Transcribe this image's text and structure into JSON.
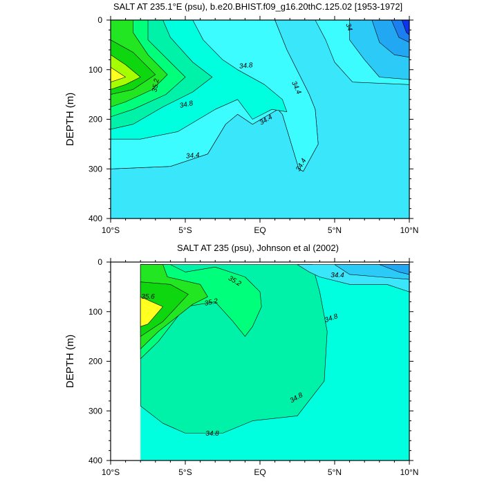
{
  "colors": {
    "levels": [
      "#0b33f0",
      "#1c7ff0",
      "#22a8f3",
      "#2ccaf6",
      "#39e6fa",
      "#3cfcff",
      "#00ffdf",
      "#00f2a8",
      "#00ff7a",
      "#22e622",
      "#0fd70f",
      "#a5ff00",
      "#ffff20"
    ],
    "contour": "#000000",
    "axis": "#000000"
  },
  "chart_data": [
    {
      "type": "contour",
      "title": "SALT AT 235.1°E (psu), b.e20.BHIST.f09_g16.20thC.125.02 [1953-1972]",
      "xlabel": "",
      "ylabel": "DEPTH (m)",
      "xlim": [
        -10,
        10
      ],
      "ylim": [
        400,
        0
      ],
      "x_ticks": [
        "10°S",
        "5°S",
        "EQ",
        "5°N",
        "10°N"
      ],
      "y_ticks": [
        "0",
        "100",
        "200",
        "300",
        "400"
      ],
      "contour_labels": [
        "35.2",
        "34.8",
        "34.8",
        "34.4",
        "34.4",
        "34.4",
        "34.4",
        "34"
      ],
      "regions": [
        {
          "fill": 5,
          "points": [
            [
              -10,
              0
            ],
            [
              10,
              0
            ],
            [
              10,
              400
            ],
            [
              -10,
              400
            ]
          ]
        },
        {
          "fill": 4,
          "points": [
            [
              -10,
              0
            ],
            [
              3.7,
              0
            ],
            [
              4.4,
              40
            ],
            [
              5,
              85
            ],
            [
              6.2,
              125
            ],
            [
              10,
              130
            ],
            [
              10,
              400
            ],
            [
              -10,
              400
            ],
            [
              -10,
              300
            ],
            [
              -6,
              295
            ],
            [
              -3.5,
              270
            ],
            [
              -2.3,
              210
            ],
            [
              -1.5,
              190
            ],
            [
              -0.5,
              210
            ],
            [
              1.2,
              180
            ],
            [
              1.5,
              190
            ],
            [
              2.6,
              300
            ],
            [
              2.9,
              305
            ],
            [
              3.9,
              250
            ],
            [
              3.7,
              180
            ],
            [
              3.3,
              150
            ],
            [
              1.8,
              60
            ],
            [
              1,
              0
            ]
          ]
        },
        {
          "fill": 5,
          "points": [
            [
              -10,
              0
            ],
            [
              1,
              0
            ],
            [
              1.8,
              60
            ],
            [
              3.3,
              150
            ],
            [
              3.7,
              180
            ],
            [
              3.9,
              250
            ],
            [
              2.9,
              305
            ],
            [
              2.6,
              300
            ],
            [
              1.5,
              190
            ],
            [
              1.2,
              180
            ],
            [
              -0.5,
              210
            ],
            [
              -1.5,
              190
            ],
            [
              -2.3,
              210
            ],
            [
              -3.5,
              270
            ],
            [
              -6,
              295
            ],
            [
              -10,
              300
            ]
          ]
        },
        {
          "fill": 6,
          "points": [
            [
              -10,
              0
            ],
            [
              -4.5,
              0
            ],
            [
              -3.8,
              40
            ],
            [
              -2.5,
              80
            ],
            [
              -1.5,
              100
            ],
            [
              0.3,
              130
            ],
            [
              1.5,
              160
            ],
            [
              1.8,
              185
            ],
            [
              0.8,
              180
            ],
            [
              -0.5,
              200
            ],
            [
              -1.5,
              160
            ],
            [
              -3,
              180
            ],
            [
              -5.5,
              225
            ],
            [
              -8,
              240
            ],
            [
              -10,
              240
            ]
          ]
        },
        {
          "fill": 7,
          "points": [
            [
              -10,
              0
            ],
            [
              -6.5,
              0
            ],
            [
              -6,
              35
            ],
            [
              -4.5,
              85
            ],
            [
              -3.2,
              115
            ],
            [
              -4.5,
              145
            ],
            [
              -6.5,
              175
            ],
            [
              -8.5,
              210
            ],
            [
              -10,
              220
            ]
          ]
        },
        {
          "fill": 8,
          "points": [
            [
              -10,
              0
            ],
            [
              -7.5,
              0
            ],
            [
              -7.5,
              40
            ],
            [
              -6,
              85
            ],
            [
              -5,
              115
            ],
            [
              -6.3,
              150
            ],
            [
              -8.5,
              180
            ],
            [
              -10,
              195
            ]
          ]
        },
        {
          "fill": 9,
          "points": [
            [
              -10,
              0
            ],
            [
              -8.5,
              0
            ],
            [
              -8.5,
              25
            ],
            [
              -7.5,
              70
            ],
            [
              -6.2,
              110
            ],
            [
              -7.2,
              140
            ],
            [
              -9,
              165
            ],
            [
              -10,
              175
            ]
          ]
        },
        {
          "fill": 10,
          "points": [
            [
              -10,
              40
            ],
            [
              -8.5,
              65
            ],
            [
              -7,
              110
            ],
            [
              -8.5,
              140
            ],
            [
              -10,
              150
            ]
          ]
        },
        {
          "fill": 11,
          "points": [
            [
              -10,
              70
            ],
            [
              -9,
              90
            ],
            [
              -8,
              115
            ],
            [
              -9,
              130
            ],
            [
              -10,
              140
            ]
          ]
        },
        {
          "fill": 12,
          "points": [
            [
              -10,
              95
            ],
            [
              -9,
              115
            ],
            [
              -10,
              125
            ]
          ]
        },
        {
          "fill": 3,
          "points": [
            [
              6,
              0
            ],
            [
              10,
              0
            ],
            [
              10,
              120
            ],
            [
              8,
              115
            ],
            [
              7,
              80
            ],
            [
              6,
              40
            ]
          ]
        },
        {
          "fill": 2,
          "points": [
            [
              7.5,
              0
            ],
            [
              10,
              0
            ],
            [
              10,
              75
            ],
            [
              9,
              70
            ],
            [
              8,
              45
            ]
          ]
        },
        {
          "fill": 1,
          "points": [
            [
              8.8,
              0
            ],
            [
              10,
              0
            ],
            [
              10,
              45
            ],
            [
              9.3,
              35
            ]
          ]
        },
        {
          "fill": 0,
          "points": [
            [
              9.5,
              0
            ],
            [
              10,
              0
            ],
            [
              10,
              30
            ],
            [
              9.8,
              25
            ]
          ]
        }
      ]
    },
    {
      "type": "contour",
      "title": "SALT AT 235 (psu), Johnson et al (2002)",
      "xlabel": "",
      "ylabel": "DEPTH (m)",
      "xlim": [
        -10,
        10
      ],
      "ylim": [
        400,
        0
      ],
      "x_ticks": [
        "10°S",
        "5°S",
        "EQ",
        "5°N",
        "10°N"
      ],
      "y_ticks": [
        "0",
        "100",
        "200",
        "300",
        "400"
      ],
      "contour_labels": [
        "35.2",
        "35.6",
        "35.2",
        "34.8",
        "34.8",
        "34.8",
        "34.4"
      ],
      "regions": [
        {
          "fill": 6,
          "points": [
            [
              -8,
              5
            ],
            [
              10,
              5
            ],
            [
              10,
              400
            ],
            [
              -8,
              400
            ]
          ]
        },
        {
          "fill": 7,
          "points": [
            [
              -8,
              5
            ],
            [
              3.5,
              5
            ],
            [
              4,
              60
            ],
            [
              4.5,
              140
            ],
            [
              4.3,
              240
            ],
            [
              2.5,
              310
            ],
            [
              -0.5,
              320
            ],
            [
              -2.5,
              345
            ],
            [
              -5,
              345
            ],
            [
              -6.5,
              325
            ],
            [
              -8,
              290
            ]
          ]
        },
        {
          "fill": 8,
          "points": [
            [
              -8,
              5
            ],
            [
              -6,
              5
            ],
            [
              -5,
              20
            ],
            [
              -3,
              10
            ],
            [
              -1,
              30
            ],
            [
              0,
              60
            ],
            [
              0.1,
              90
            ],
            [
              -0.5,
              130
            ],
            [
              -1,
              150
            ],
            [
              -1.8,
              120
            ],
            [
              -3,
              80
            ],
            [
              -5,
              90
            ],
            [
              -6.8,
              160
            ],
            [
              -8,
              195
            ]
          ]
        },
        {
          "fill": 9,
          "points": [
            [
              -8,
              5
            ],
            [
              -6.5,
              5
            ],
            [
              -6.2,
              30
            ],
            [
              -4,
              45
            ],
            [
              -3.5,
              70
            ],
            [
              -4.5,
              85
            ],
            [
              -6.8,
              140
            ],
            [
              -8,
              175
            ]
          ]
        },
        {
          "fill": 10,
          "points": [
            [
              -8,
              40
            ],
            [
              -6,
              45
            ],
            [
              -4.8,
              65
            ],
            [
              -6.5,
              120
            ],
            [
              -8,
              150
            ]
          ]
        },
        {
          "fill": 12,
          "points": [
            [
              -8,
              70
            ],
            [
              -6.5,
              90
            ],
            [
              -7.5,
              125
            ],
            [
              -8,
              130
            ]
          ]
        },
        {
          "fill": 4,
          "points": [
            [
              2.5,
              5
            ],
            [
              10,
              5
            ],
            [
              10,
              60
            ],
            [
              8.5,
              45
            ],
            [
              6,
              45
            ],
            [
              4,
              30
            ],
            [
              3.3,
              20
            ]
          ]
        },
        {
          "fill": 3,
          "points": [
            [
              5,
              5
            ],
            [
              10,
              5
            ],
            [
              10,
              35
            ],
            [
              8,
              30
            ],
            [
              6,
              25
            ]
          ]
        },
        {
          "fill": 2,
          "points": [
            [
              8,
              5
            ],
            [
              10,
              5
            ],
            [
              10,
              25
            ],
            [
              9.3,
              20
            ]
          ]
        }
      ]
    }
  ]
}
